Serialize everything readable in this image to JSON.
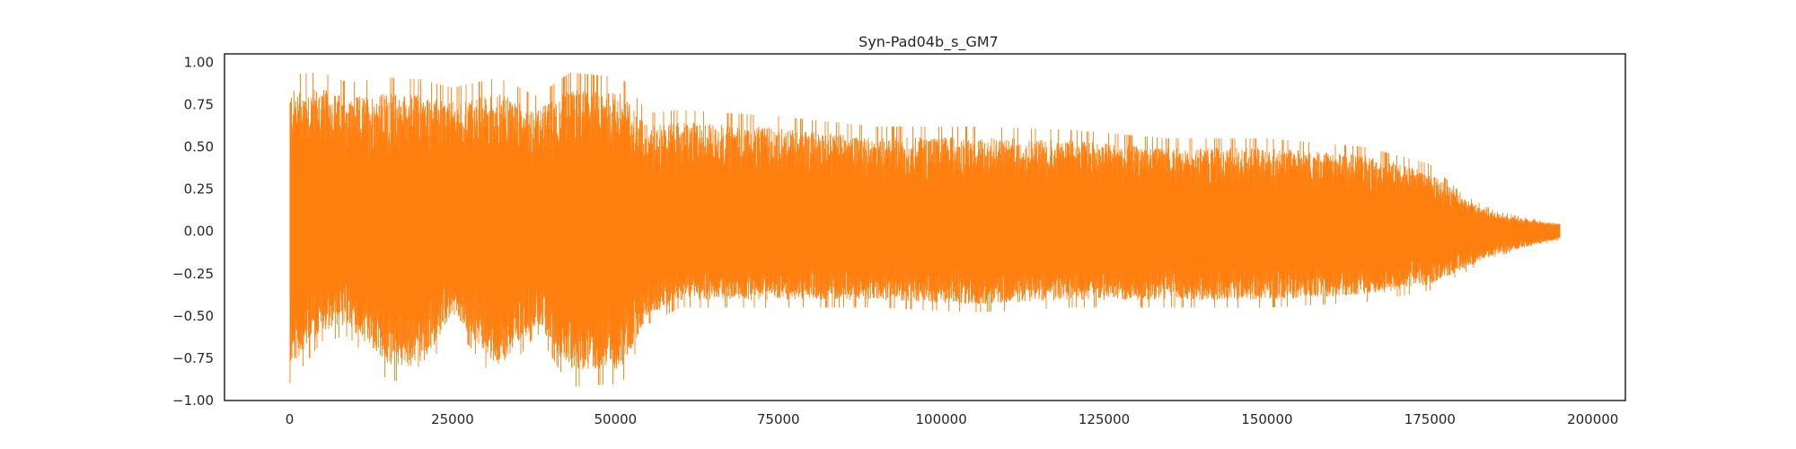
{
  "chart_data": {
    "type": "line",
    "title": "Syn-Pad04b_s_GM7",
    "xlabel": "",
    "ylabel": "",
    "xlim": [
      -10000,
      205000
    ],
    "ylim": [
      -1.0,
      1.05
    ],
    "x_ticks": [
      0,
      25000,
      50000,
      75000,
      100000,
      125000,
      150000,
      175000,
      200000
    ],
    "x_tick_labels": [
      "0",
      "25000",
      "50000",
      "75000",
      "100000",
      "125000",
      "150000",
      "175000",
      "200000"
    ],
    "y_ticks": [
      1.0,
      0.75,
      0.5,
      0.25,
      0.0,
      -0.25,
      -0.5,
      -0.75,
      -1.0
    ],
    "y_tick_labels": [
      "1.00",
      "0.75",
      "0.50",
      "0.25",
      "0.00",
      "−0.25",
      "−0.50",
      "−0.75",
      "−1.00"
    ],
    "grid": false,
    "legend": "none",
    "series": [
      {
        "color": "#ff7f0e",
        "x_start": 0,
        "x_end": 195000,
        "envelope": [
          {
            "x": 0,
            "max": 0.93,
            "min": -0.9
          },
          {
            "x": 5000,
            "max": 0.94,
            "min": -0.65
          },
          {
            "x": 9000,
            "max": 0.88,
            "min": -0.62
          },
          {
            "x": 15000,
            "max": 0.91,
            "min": -0.88
          },
          {
            "x": 20000,
            "max": 0.9,
            "min": -0.9
          },
          {
            "x": 25000,
            "max": 0.85,
            "min": -0.55
          },
          {
            "x": 32000,
            "max": 0.91,
            "min": -0.9
          },
          {
            "x": 38000,
            "max": 0.8,
            "min": -0.6
          },
          {
            "x": 43000,
            "max": 0.94,
            "min": -0.92
          },
          {
            "x": 51000,
            "max": 0.91,
            "min": -0.9
          },
          {
            "x": 55000,
            "max": 0.7,
            "min": -0.55
          },
          {
            "x": 60000,
            "max": 0.72,
            "min": -0.45
          },
          {
            "x": 75000,
            "max": 0.68,
            "min": -0.45
          },
          {
            "x": 90000,
            "max": 0.62,
            "min": -0.45
          },
          {
            "x": 105000,
            "max": 0.62,
            "min": -0.48
          },
          {
            "x": 120000,
            "max": 0.6,
            "min": -0.45
          },
          {
            "x": 135000,
            "max": 0.55,
            "min": -0.45
          },
          {
            "x": 150000,
            "max": 0.55,
            "min": -0.45
          },
          {
            "x": 165000,
            "max": 0.5,
            "min": -0.42
          },
          {
            "x": 175000,
            "max": 0.4,
            "min": -0.35
          },
          {
            "x": 180000,
            "max": 0.22,
            "min": -0.25
          },
          {
            "x": 185000,
            "max": 0.12,
            "min": -0.15
          },
          {
            "x": 190000,
            "max": 0.08,
            "min": -0.1
          },
          {
            "x": 195000,
            "max": 0.05,
            "min": -0.05
          }
        ]
      }
    ]
  }
}
